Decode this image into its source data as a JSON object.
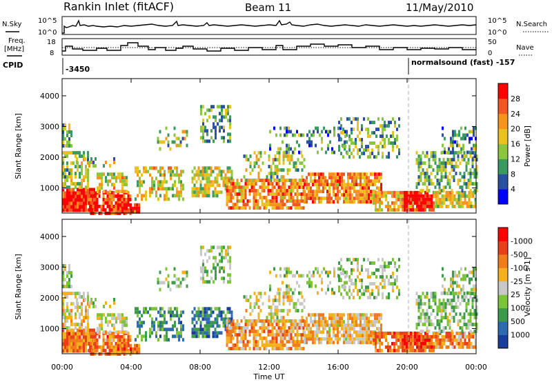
{
  "header": {
    "station": "Rankin Inlet (fitACF)",
    "beam": "Beam 11",
    "date": "11/May/2010"
  },
  "top_panels": {
    "nsky_label": "N.Sky",
    "nsky_ticks": [
      "10^5",
      "10^0"
    ],
    "nsearch_label": "N.Search",
    "nsearch_ticks": [
      "10^5",
      "10^0"
    ],
    "freq_label_1": "Freq.",
    "freq_label_2": "[MHz]",
    "freq_ticks": [
      "18",
      "8"
    ],
    "nave_label": "Nave",
    "nave_ticks": [
      "50",
      "0"
    ],
    "cpid_label": "CPID",
    "cpid_left": "-3450",
    "cpid_right": "normalsound (fast) -157"
  },
  "chart_data": [
    {
      "type": "heatmap",
      "panel": "power",
      "ylabel": "Slant Range [km]",
      "yticks": [
        "1000",
        "2000",
        "3000",
        "4000"
      ],
      "ylim": [
        180,
        4560
      ],
      "xlim": [
        0,
        24
      ],
      "colorbar_label": "Power [dB]",
      "colorbar_ticks": [
        "4",
        "8",
        "12",
        "16",
        "20",
        "24",
        "28"
      ],
      "colorbar_colors": [
        "#0000ff",
        "#2a4fa0",
        "#3a9a60",
        "#8cc63f",
        "#e9c220",
        "#f7941d",
        "#f05a22",
        "#ff0000"
      ]
    },
    {
      "type": "heatmap",
      "panel": "velocity",
      "ylabel": "Slant Range [km]",
      "yticks": [
        "1000",
        "2000",
        "3000",
        "4000"
      ],
      "ylim": [
        180,
        4560
      ],
      "xlim": [
        0,
        24
      ],
      "xlabel": "Time UT",
      "xticks": [
        "00:00",
        "04:00",
        "08:00",
        "12:00",
        "16:00",
        "20:00",
        "00:00"
      ],
      "colorbar_label": "Velocity [m s-1]",
      "colorbar_ticks": [
        "1000",
        "500",
        "100",
        "25",
        "-25",
        "-100",
        "-500",
        "-1000"
      ],
      "colorbar_colors": [
        "#1a3c9c",
        "#2e6ab0",
        "#3c9a4a",
        "#7cc43a",
        "#c8c8c8",
        "#f5b01f",
        "#f07d1a",
        "#e8401a",
        "#ff0000"
      ]
    }
  ]
}
